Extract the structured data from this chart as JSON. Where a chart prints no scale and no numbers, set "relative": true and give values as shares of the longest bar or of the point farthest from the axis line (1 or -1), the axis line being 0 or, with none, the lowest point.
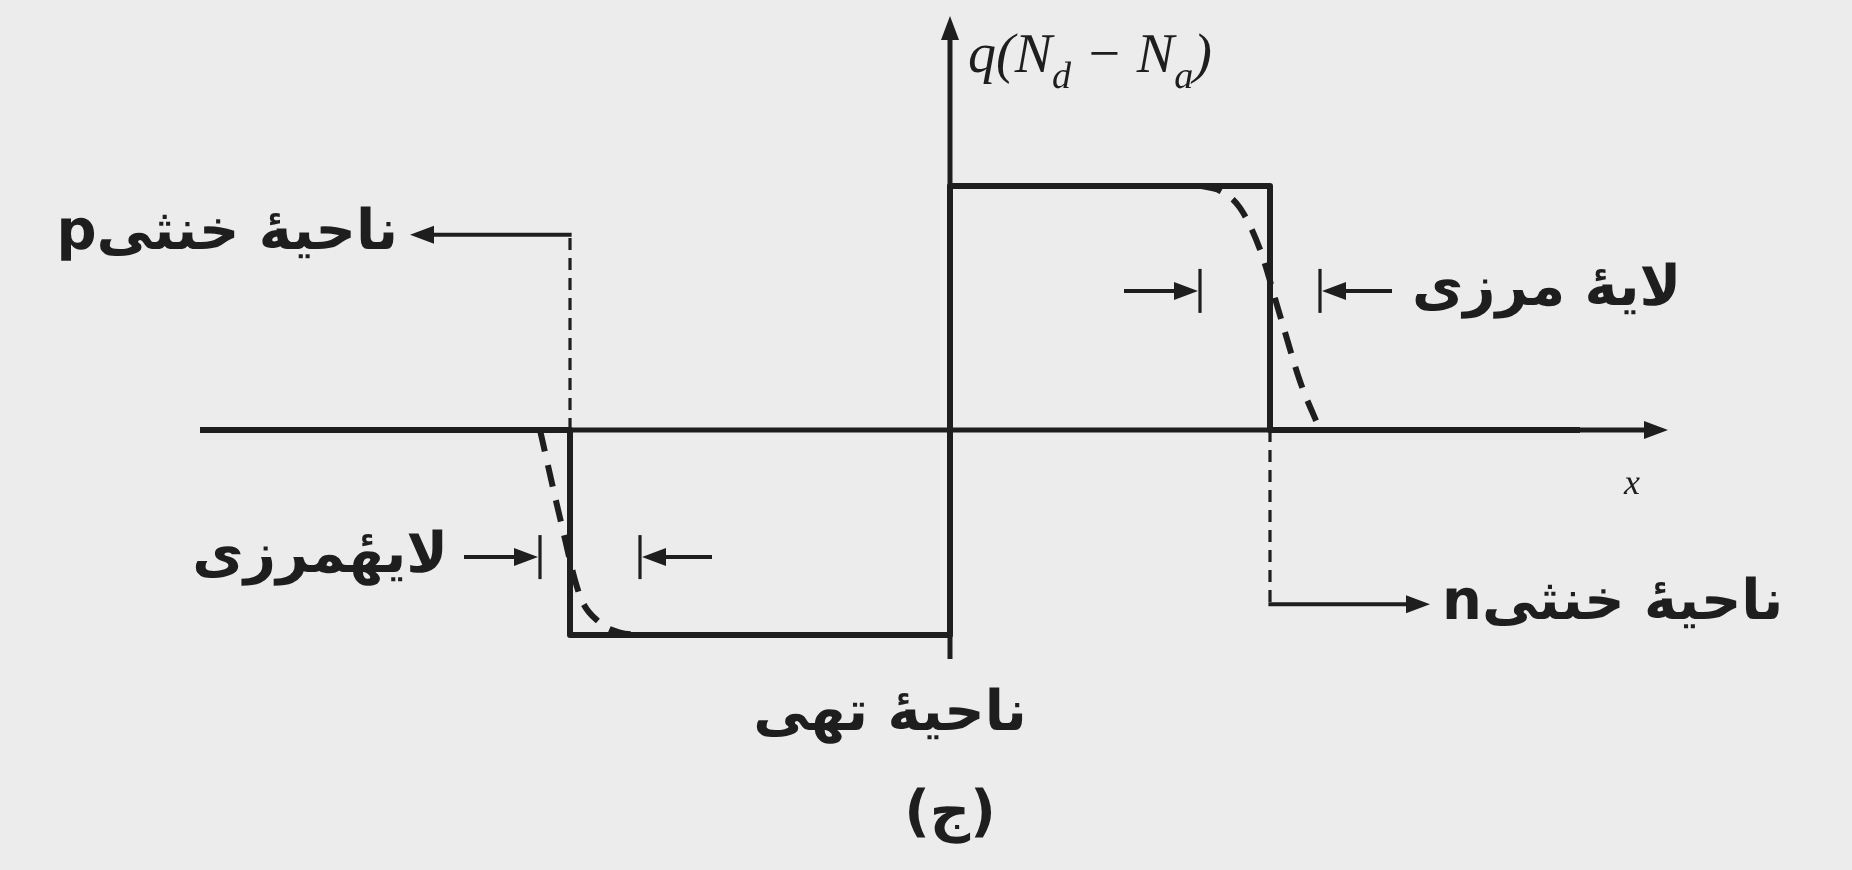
{
  "chart_data": {
    "type": "step",
    "relative": true,
    "ylabel": "q(N$_{d}$ − N$_{a}$)",
    "xlabel": "x",
    "marker": "none",
    "categories": [
      null,
      null,
      null,
      null,
      null,
      null,
      null,
      null,
      null,
      null,
      null,
      null,
      null,
      null,
      null,
      null,
      null,
      null,
      null,
      null,
      null,
      null,
      null,
      null,
      null,
      null,
      null,
      null,
      null,
      null,
      null,
      null,
      null,
      null,
      null,
      null,
      null,
      null,
      null,
      null,
      null,
      null,
      null,
      null,
      null,
      null,
      null,
      null,
      null,
      null,
      null,
      null,
      null,
      null,
      null,
      null,
      null,
      null,
      null,
      null,
      null,
      null,
      null,
      null,
      null,
      null,
      null,
      null,
      null,
      null
    ],
    "series": [
      {
        "color": "#1e1e1e",
        "values": [
          0,
          0,
          0,
          0,
          0,
          0,
          0,
          0,
          0,
          0,
          0,
          0,
          0,
          0,
          0,
          0,
          0,
          0,
          0,
          -0.84,
          -0.84,
          -0.84,
          -0.84,
          -0.84,
          -0.84,
          -0.84,
          -0.84,
          -0.84,
          -0.84,
          -0.84,
          -0.84,
          -0.84,
          -0.84,
          -0.84,
          -0.84,
          -0.84,
          -0.84,
          -0.84,
          1,
          1,
          1,
          1,
          1,
          1,
          1,
          1,
          1,
          1,
          1,
          1,
          1,
          1,
          1,
          1,
          0,
          0,
          0,
          0,
          0,
          0,
          0,
          0,
          0,
          0,
          0,
          0,
          0,
          0,
          0,
          0
        ]
      },
      {
        "type": "line",
        "line_style": "dashed",
        "color": "#1e1e1e",
        "values": [
          null,
          null,
          null,
          null,
          null,
          null,
          null,
          null,
          null,
          null,
          null,
          null,
          null,
          null,
          null,
          null,
          null,
          0,
          -0.36,
          -0.68,
          -0.79,
          -0.83,
          -0.84,
          null,
          null,
          null,
          null,
          null,
          null,
          null,
          null,
          null,
          null,
          null,
          null,
          null,
          null,
          null,
          null,
          null,
          null,
          null,
          null,
          null,
          null,
          null,
          null,
          null,
          null,
          null,
          1,
          0.98,
          0.91,
          0.74,
          0.47,
          0.2,
          0,
          null,
          null,
          null,
          null,
          null,
          null,
          null,
          null,
          null,
          null,
          null,
          null,
          null
        ]
      }
    ],
    "annotations": [
      "ناحیهٔ خنثیp",
      "لایهٔ مرزی",
      "لایهٔمرزی",
      "ناحیهٔ خنثیn",
      "ناحیهٔ تهی",
      "(ج)"
    ]
  }
}
